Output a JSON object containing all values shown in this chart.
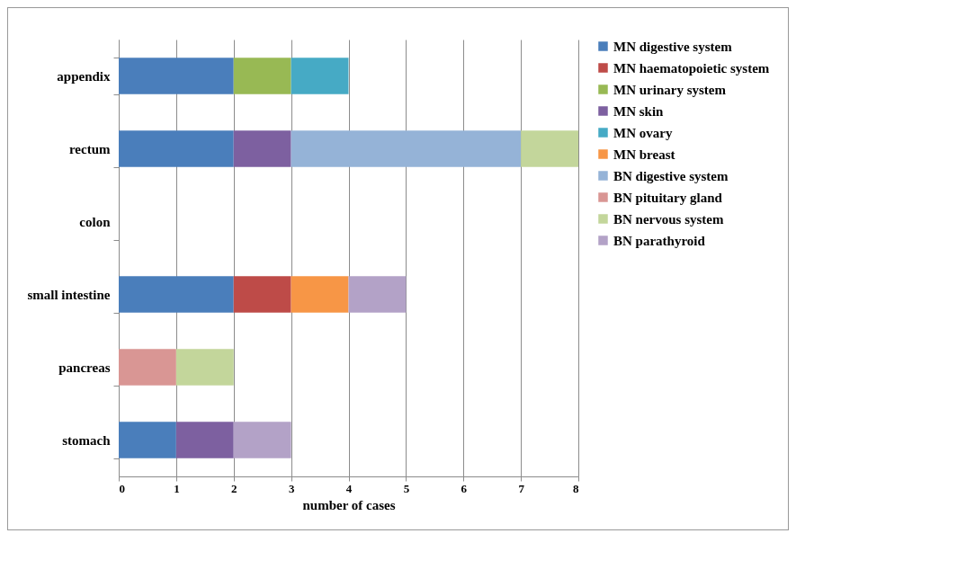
{
  "chart_data": {
    "type": "bar",
    "orientation": "horizontal",
    "stacked": true,
    "categories": [
      "appendix",
      "rectum",
      "colon",
      "small intestine",
      "pancreas",
      "stomach"
    ],
    "series": [
      {
        "name": "MN digestive system",
        "color": "#4a7ebb",
        "values": [
          2,
          2,
          null,
          2,
          null,
          1
        ]
      },
      {
        "name": "MN haematopoietic system",
        "color": "#be4b48",
        "values": [
          null,
          null,
          null,
          1,
          null,
          null
        ]
      },
      {
        "name": "MN urinary system",
        "color": "#98b954",
        "values": [
          1,
          null,
          null,
          null,
          null,
          null
        ]
      },
      {
        "name": "MN skin",
        "color": "#7d60a0",
        "values": [
          null,
          1,
          null,
          null,
          null,
          1
        ]
      },
      {
        "name": "MN ovary",
        "color": "#46aac5",
        "values": [
          1,
          null,
          null,
          null,
          null,
          null
        ]
      },
      {
        "name": "MN breast",
        "color": "#f79646",
        "values": [
          null,
          null,
          null,
          1,
          null,
          null
        ]
      },
      {
        "name": "BN digestive system",
        "color": "#95b3d7",
        "values": [
          null,
          4,
          null,
          null,
          null,
          null
        ]
      },
      {
        "name": "BN pituitary gland",
        "color": "#d99694",
        "values": [
          null,
          null,
          null,
          null,
          1,
          null
        ]
      },
      {
        "name": "BN nervous system",
        "color": "#c3d69b",
        "values": [
          null,
          1,
          null,
          null,
          1,
          null
        ]
      },
      {
        "name": "BN parathyroid",
        "color": "#b3a2c7",
        "values": [
          null,
          null,
          null,
          1,
          null,
          1
        ]
      }
    ],
    "xlabel": "number of cases",
    "xlim": [
      0,
      8
    ],
    "xticks": [
      0,
      1,
      2,
      3,
      4,
      5,
      6,
      7,
      8
    ],
    "grid": "x",
    "legend": "right"
  }
}
